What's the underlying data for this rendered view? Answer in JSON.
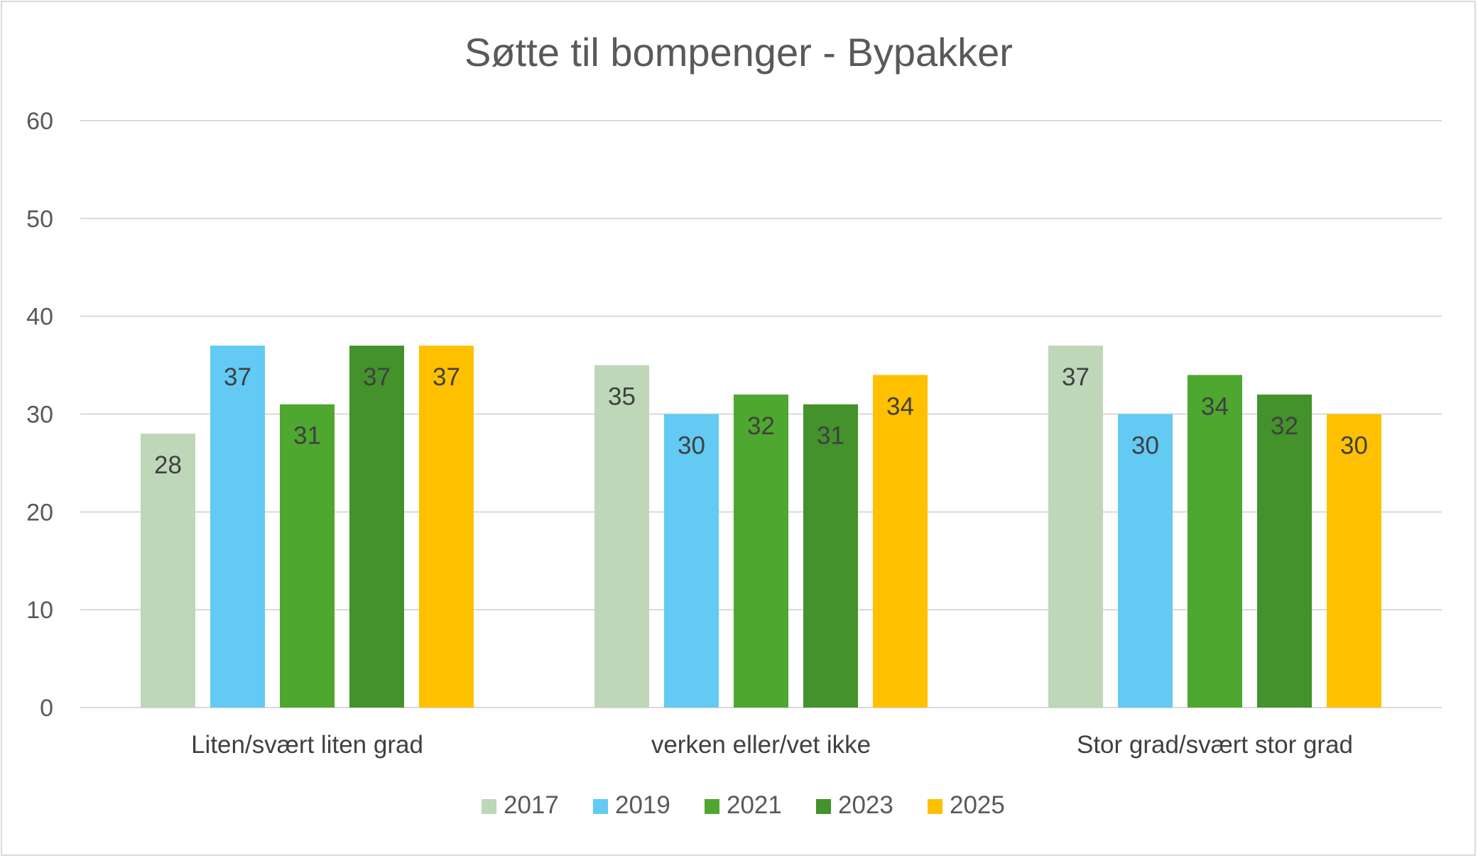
{
  "chart_data": {
    "type": "bar",
    "title": "Søtte til bompenger - Bypakker",
    "categories": [
      "Liten/svært liten grad",
      "verken eller/vet ikke",
      "Stor grad/svært stor grad"
    ],
    "series": [
      {
        "name": "2017",
        "color": "#bdd7b8",
        "values": [
          28,
          35,
          37
        ]
      },
      {
        "name": "2019",
        "color": "#62caf3",
        "values": [
          37,
          30,
          30
        ]
      },
      {
        "name": "2021",
        "color": "#4ea72e",
        "values": [
          31,
          32,
          34
        ]
      },
      {
        "name": "2023",
        "color": "#43922b",
        "values": [
          37,
          31,
          32
        ]
      },
      {
        "name": "2025",
        "color": "#ffc000",
        "values": [
          37,
          34,
          30
        ]
      }
    ],
    "ylim": [
      0,
      60
    ],
    "yticks": [
      0,
      10,
      20,
      30,
      40,
      50,
      60
    ],
    "grid": true,
    "legend_position": "bottom",
    "data_labels": true
  }
}
